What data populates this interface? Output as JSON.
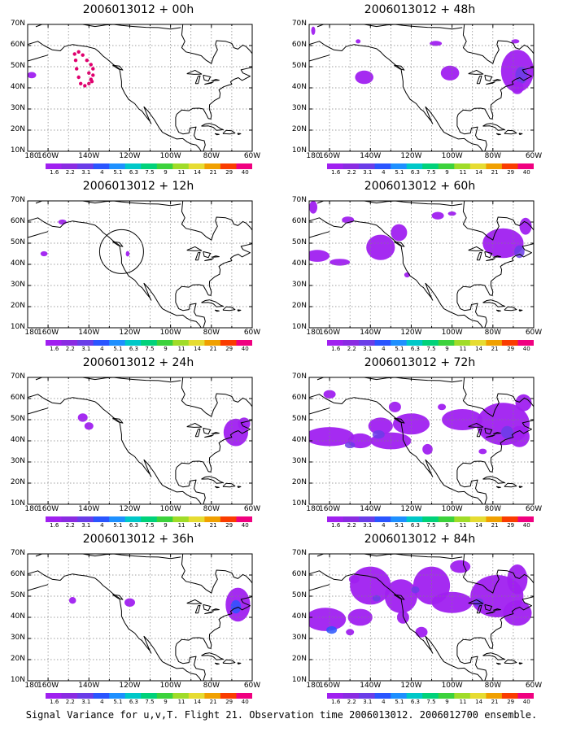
{
  "panels": [
    {
      "title": "2006013012 + 00h"
    },
    {
      "title": "2006013012 + 48h"
    },
    {
      "title": "2006013012 + 12h"
    },
    {
      "title": "2006013012 + 60h"
    },
    {
      "title": "2006013012 + 24h"
    },
    {
      "title": "2006013012 + 72h"
    },
    {
      "title": "2006013012 + 36h"
    },
    {
      "title": "2006013012 + 84h"
    }
  ],
  "axes": {
    "lat_labels": [
      "70N",
      "60N",
      "50N",
      "40N",
      "30N",
      "20N",
      "10N"
    ],
    "lon_labels": [
      "180",
      "160W",
      "140W",
      "120W",
      "100W",
      "80W",
      "60W"
    ],
    "lat_range": [
      10,
      70
    ],
    "lon_range": [
      -170,
      -60
    ]
  },
  "colorbar": {
    "labels": [
      "1.6",
      "2.2",
      "3.1",
      "4",
      "5.1",
      "6.3",
      "7.5",
      "9",
      "11",
      "14",
      "21",
      "29",
      "40"
    ],
    "colors": [
      "#a020f0",
      "#8a2be2",
      "#6a3de8",
      "#2a55ff",
      "#1e90ff",
      "#00c8c8",
      "#00d27a",
      "#3cd23c",
      "#a0dc28",
      "#e6dc32",
      "#f0a000",
      "#fa3c00",
      "#f00080"
    ]
  },
  "caption": "Signal Variance for u,v,T. Flight 21. Observation time 2006013012. 2006012700 ensemble."
}
